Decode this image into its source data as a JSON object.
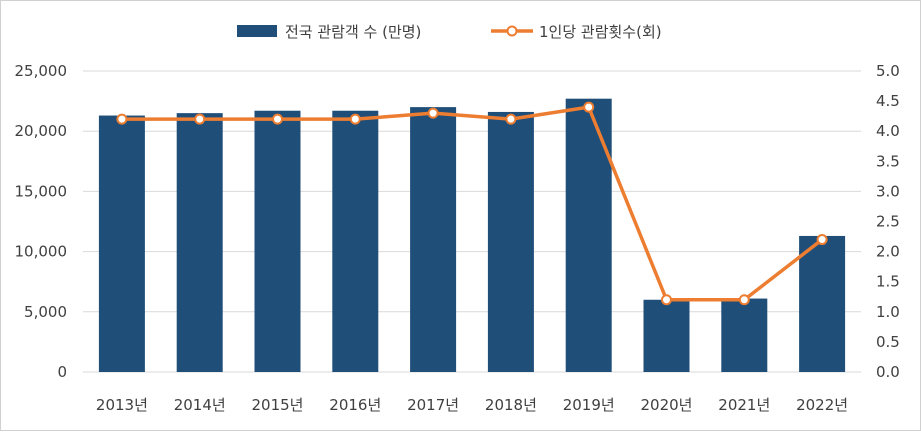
{
  "chart_data": {
    "type": "bar",
    "categories": [
      "2013년",
      "2014년",
      "2015년",
      "2016년",
      "2017년",
      "2018년",
      "2019년",
      "2020년",
      "2021년",
      "2022년"
    ],
    "series": [
      {
        "name": "전국 관람객 수 (만명)",
        "type": "bar",
        "axis": "left",
        "color": "#1f4e79",
        "values": [
          21300,
          21500,
          21700,
          21700,
          22000,
          21600,
          22700,
          6000,
          6100,
          11300
        ]
      },
      {
        "name": "1인당 관람횟수(회)",
        "type": "line",
        "axis": "right",
        "color": "#ed7d31",
        "values": [
          4.2,
          4.2,
          4.2,
          4.2,
          4.3,
          4.2,
          4.4,
          1.2,
          1.2,
          2.2
        ]
      }
    ],
    "ylim_left": [
      0,
      25000
    ],
    "ylim_right": [
      0,
      5.0
    ],
    "left_ticks": [
      "0",
      "5,000",
      "10,000",
      "15,000",
      "20,000",
      "25,000"
    ],
    "right_ticks": [
      "0.0",
      "0.5",
      "1.0",
      "1.5",
      "2.0",
      "2.5",
      "3.0",
      "3.5",
      "4.0",
      "4.5",
      "5.0"
    ],
    "grid": true,
    "legend_position": "top"
  }
}
